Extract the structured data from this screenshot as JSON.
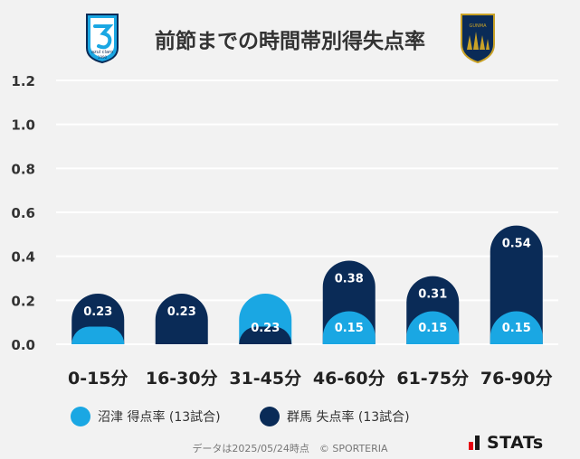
{
  "title": "前節までの時間帯別得失点率",
  "logos": {
    "left_text": "azul claro",
    "left_year": "1990",
    "right_text": "GUNMA"
  },
  "colors": {
    "home": "#1aa7e3",
    "away": "#0a2b57",
    "background": "#f2f2f2",
    "grid": "#ffffff",
    "brand_red": "#e60012"
  },
  "chart_data": {
    "type": "bar",
    "title": "前節までの時間帯別得失点率",
    "categories": [
      "0-15分",
      "16-30分",
      "31-45分",
      "46-60分",
      "61-75分",
      "76-90分"
    ],
    "series": [
      {
        "name": "沼津 得点率 (13試合)",
        "values": [
          0.08,
          0.0,
          0.23,
          0.15,
          0.15,
          0.15
        ],
        "labels": [
          "",
          "",
          "0.23",
          "0.15",
          "0.15",
          "0.15"
        ]
      },
      {
        "name": "群馬 失点率 (13試合)",
        "values": [
          0.23,
          0.23,
          0.08,
          0.38,
          0.31,
          0.54
        ],
        "labels": [
          "0.23",
          "0.23",
          "",
          "0.38",
          "0.31",
          "0.54"
        ]
      }
    ],
    "y_ticks": [
      "0.0",
      "0.2",
      "0.4",
      "0.6",
      "0.8",
      "1.0",
      "1.2"
    ],
    "ylim": [
      0,
      1.2
    ],
    "xlabel": "",
    "ylabel": "",
    "grid": true,
    "legend_position": "bottom"
  },
  "legend": {
    "home_label": "沼津 得点率 (13試合)",
    "away_label": "群馬 失点率 (13試合)"
  },
  "footer": "データは2025/05/24時点　© SPORTERIA",
  "brand": "STATs"
}
